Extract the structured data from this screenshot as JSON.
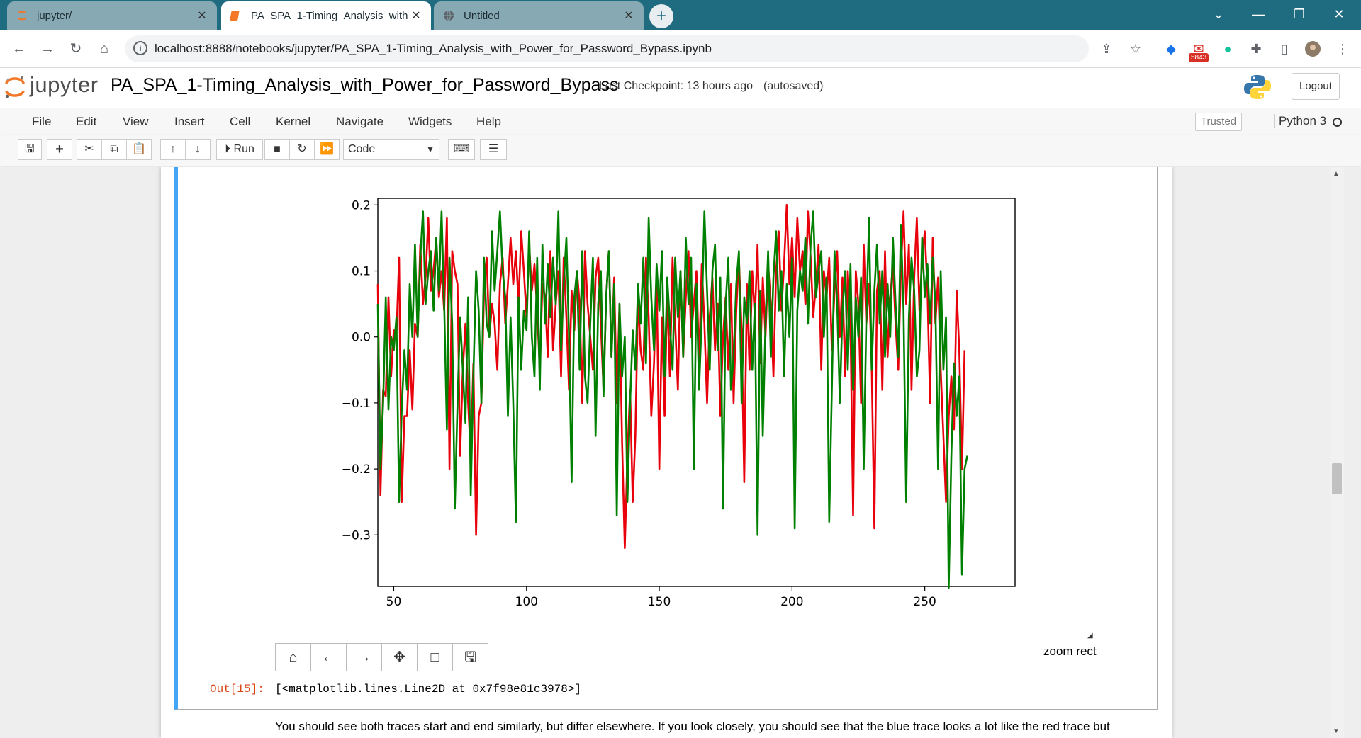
{
  "browser": {
    "tabs": [
      {
        "label": "jupyter/",
        "active": false,
        "icon": "jupyter-favicon"
      },
      {
        "label": "PA_SPA_1-Timing_Analysis_with_",
        "active": true,
        "icon": "notebook-favicon"
      },
      {
        "label": "Untitled",
        "active": false,
        "icon": "globe-favicon"
      }
    ],
    "new_tab": "+",
    "url": "localhost:8888/notebooks/jupyter/PA_SPA_1-Timing_Analysis_with_Power_for_Password_Bypass.ipynb",
    "mail_badge": "5843"
  },
  "jupyter": {
    "logo_text": "jupyter",
    "notebook_title": "PA_SPA_1-Timing_Analysis_with_Power_for_Password_Bypass",
    "checkpoint": "Last Checkpoint: 13 hours ago",
    "autosave": "(autosaved)",
    "logout": "Logout",
    "menu": [
      "File",
      "Edit",
      "View",
      "Insert",
      "Cell",
      "Kernel",
      "Navigate",
      "Widgets",
      "Help"
    ],
    "trusted": "Trusted",
    "kernel": "Python 3",
    "toolbar": {
      "run": "Run",
      "cell_type": "Code"
    }
  },
  "cell": {
    "out_prompt": "Out[15]:",
    "out_text": "[<matplotlib.lines.Line2D at 0x7f98e81c3978>]",
    "toolbar_mode": "zoom rect",
    "markdown_text": "You should see both traces start and end similarly, but differ elsewhere. If you look closely, you should see that the blue trace looks a lot like the red trace but"
  },
  "chart_data": {
    "type": "line",
    "title": "",
    "xlabel": "",
    "ylabel": "",
    "xlim": [
      44,
      284
    ],
    "ylim": [
      -0.378,
      0.21
    ],
    "x_ticks": [
      50,
      100,
      150,
      200,
      250
    ],
    "x_tick_labels": [
      "50",
      "100",
      "150",
      "200",
      "250"
    ],
    "y_ticks": [
      0.2,
      0.1,
      0.0,
      -0.1,
      -0.2,
      -0.3
    ],
    "y_tick_labels": [
      "0.2",
      "0.1",
      "0.0",
      "−0.1",
      "−0.2",
      "−0.3"
    ],
    "grid": false,
    "x_start": 44,
    "x_step": 1,
    "series": [
      {
        "color": "#e8000b",
        "values": [
          0.08,
          -0.24,
          -0.08,
          -0.09,
          0.06,
          -0.06,
          0.01,
          0.0,
          0.12,
          -0.25,
          -0.12,
          -0.12,
          -0.02,
          -0.11,
          0.02,
          0.0,
          0.14,
          0.05,
          0.09,
          0.18,
          0.07,
          0.1,
          0.15,
          0.06,
          0.1,
          0.04,
          0.18,
          -0.2,
          0.13,
          0.1,
          0.08,
          -0.18,
          -0.05,
          0.02,
          -0.1,
          -0.18,
          -0.04,
          -0.3,
          -0.12,
          -0.1,
          0.07,
          0.12,
          0.0,
          0.05,
          0.02,
          -0.05,
          0.08,
          0.12,
          0.02,
          0.08,
          0.15,
          0.08,
          0.13,
          0.05,
          0.16,
          0.1,
          0.03,
          0.14,
          0.07,
          0.11,
          0.04,
          -0.05,
          0.08,
          0.06,
          -0.03,
          0.13,
          -0.02,
          0.05,
          0.1,
          -0.06,
          0.12,
          0.03,
          -0.08,
          0.07,
          0.01,
          0.1,
          0.05,
          -0.1,
          0.13,
          0.05,
          0.0,
          -0.05,
          0.09,
          0.12,
          0.02,
          -0.08,
          0.06,
          0.13,
          -0.03,
          0.09,
          -0.1,
          0.05,
          -0.16,
          -0.32,
          -0.18,
          -0.08,
          -0.25,
          -0.15,
          0.06,
          -0.02,
          -0.05,
          0.12,
          0.03,
          -0.12,
          -0.04,
          0.09,
          -0.2,
          0.03,
          -0.12,
          0.07,
          -0.06,
          0.12,
          0.02,
          -0.08,
          0.1,
          -0.03,
          0.06,
          0.13,
          0.0,
          0.05,
          0.1,
          -0.04,
          0.11,
          0.02,
          -0.1,
          0.03,
          0.09,
          -0.02,
          0.05,
          -0.12,
          0.0,
          0.06,
          -0.05,
          0.08,
          -0.1,
          0.04,
          0.12,
          0.01,
          -0.22,
          0.08,
          -0.05,
          0.1,
          0.03,
          0.14,
          -0.04,
          0.09,
          0.0,
          0.11,
          0.05,
          -0.06,
          0.1,
          0.16,
          0.04,
          0.11,
          0.2,
          0.08,
          0.15,
          0.06,
          0.18,
          0.1,
          0.13,
          0.05,
          0.19,
          0.12,
          0.03,
          0.08,
          0.14,
          -0.05,
          0.1,
          0.06,
          0.12,
          -0.02,
          0.07,
          0.13,
          0.0,
          0.09,
          -0.06,
          0.1,
          0.02,
          -0.27,
          0.1,
          0.05,
          -0.1,
          0.14,
          0.02,
          0.08,
          -0.04,
          -0.29,
          0.07,
          0.1,
          -0.08,
          0.13,
          -0.03,
          0.06,
          0.11,
          0.02,
          -0.05,
          0.1,
          0.19,
          0.05,
          0.14,
          -0.08,
          0.09,
          0.18,
          0.04,
          0.12,
          0.16,
          0.07,
          -0.1,
          0.15,
          0.02,
          0.09,
          -0.05,
          -0.15,
          -0.25,
          -0.12,
          -0.06,
          -0.14,
          0.07,
          -0.02,
          -0.2,
          -0.02
        ]
      },
      {
        "color": "#008000",
        "values": [
          0.05,
          -0.2,
          -0.1,
          0.06,
          -0.11,
          0.0,
          -0.02,
          0.03,
          -0.25,
          -0.11,
          -0.02,
          -0.08,
          0.08,
          0.0,
          0.14,
          0.0,
          0.12,
          0.19,
          0.05,
          0.1,
          0.13,
          0.04,
          0.15,
          0.07,
          0.19,
          0.05,
          -0.14,
          0.12,
          0.02,
          -0.26,
          -0.1,
          0.03,
          -0.05,
          -0.13,
          0.06,
          -0.24,
          -0.06,
          0.1,
          0.04,
          -0.1,
          0.12,
          0.02,
          0.0,
          0.16,
          0.07,
          0.13,
          0.19,
          0.1,
          0.06,
          -0.12,
          0.03,
          -0.1,
          -0.28,
          0.06,
          -0.05,
          0.04,
          0.01,
          0.16,
          0.0,
          -0.06,
          0.12,
          -0.08,
          0.14,
          0.02,
          0.11,
          0.03,
          0.12,
          0.05,
          0.19,
          -0.02,
          0.08,
          0.15,
          0.0,
          -0.22,
          0.06,
          0.1,
          -0.05,
          0.13,
          -0.06,
          -0.1,
          0.02,
          0.12,
          -0.15,
          0.05,
          0.1,
          -0.09,
          0.06,
          0.13,
          -0.03,
          0.08,
          -0.27,
          0.05,
          -0.06,
          0.0,
          -0.25,
          -0.1,
          0.01,
          -0.05,
          0.08,
          0.02,
          0.12,
          -0.04,
          0.18,
          0.06,
          -0.02,
          0.11,
          0.04,
          0.13,
          -0.06,
          0.09,
          0.02,
          -0.05,
          0.12,
          0.03,
          0.1,
          -0.03,
          0.15,
          0.05,
          0.12,
          -0.2,
          0.08,
          -0.08,
          0.03,
          0.19,
          0.07,
          -0.05,
          0.1,
          0.14,
          -0.02,
          0.09,
          -0.26,
          0.05,
          0.12,
          -0.08,
          -0.03,
          0.08,
          0.13,
          -0.1,
          0.06,
          0.02,
          0.1,
          -0.05,
          0.05,
          -0.3,
          0.07,
          -0.15,
          0.02,
          0.13,
          -0.03,
          0.09,
          0.16,
          0.04,
          0.1,
          -0.06,
          0.08,
          0.0,
          0.12,
          -0.29,
          0.04,
          0.1,
          0.07,
          0.15,
          0.02,
          0.14,
          0.19,
          0.06,
          0.1,
          0.13,
          0.0,
          0.09,
          -0.28,
          -0.08,
          0.13,
          0.05,
          -0.1,
          0.04,
          0.1,
          -0.05,
          0.11,
          -0.08,
          0.06,
          0.0,
          0.09,
          -0.2,
          0.03,
          0.18,
          -0.05,
          0.07,
          0.14,
          0.02,
          0.1,
          -0.03,
          0.08,
          0.0,
          0.15,
          0.05,
          -0.03,
          0.17,
          0.04,
          -0.25,
          0.03,
          0.12,
          0.07,
          -0.06,
          -0.02,
          0.15,
          0.06,
          0.11,
          0.02,
          0.12,
          0.05,
          -0.2,
          0.1,
          -0.05,
          0.03,
          -0.38,
          -0.18,
          -0.04,
          -0.12,
          -0.06,
          -0.36,
          -0.2,
          -0.18
        ]
      }
    ]
  }
}
